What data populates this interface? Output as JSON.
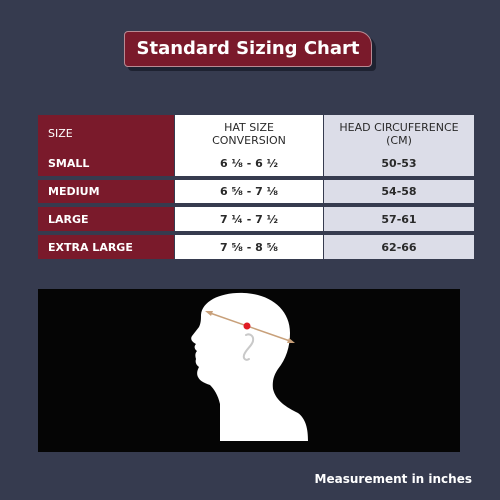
{
  "title": "Standard Sizing Chart",
  "table": {
    "headers": {
      "size": "SIZE",
      "hat_size_line1": "HAT SIZE",
      "hat_size_line2": "CONVERSION",
      "head_circ_line1": "HEAD CIRCUFERENCE",
      "head_circ_line2": "(CM)"
    },
    "rows": [
      {
        "size": "SMALL",
        "hat": "6 ⅛ - 6 ½",
        "circ": "50-53"
      },
      {
        "size": "MEDIUM",
        "hat": "6 ⅝ - 7 ⅛",
        "circ": "54-58"
      },
      {
        "size": "LARGE",
        "hat": "7 ¼ - 7 ½",
        "circ": "57-61"
      },
      {
        "size": "EXTRA LARGE",
        "hat": "7 ⅝ - 8 ⅝",
        "circ": "62-66"
      }
    ]
  },
  "illustration": {
    "icon": "head-measurement-icon",
    "head_color": "#ffffff",
    "tape_color": "#c8a07a",
    "marker_color": "#e01b24"
  },
  "footnote": "Measurement in inches",
  "colors": {
    "background": "#363b4f",
    "accent": "#7a1a2b",
    "table_alt": "#dcdde8"
  }
}
